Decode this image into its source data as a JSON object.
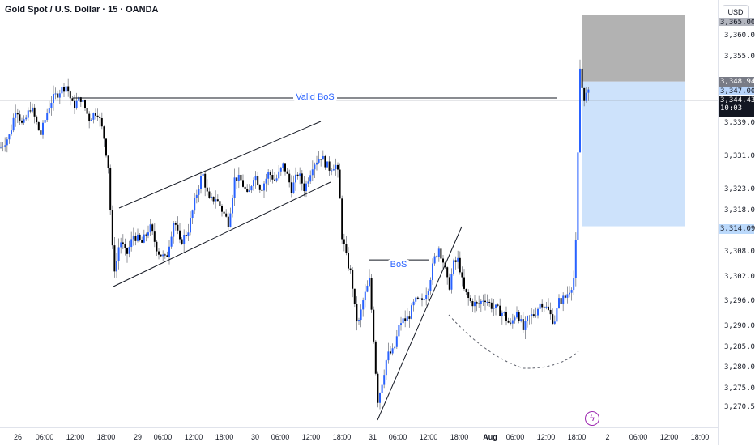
{
  "header": {
    "symbol_title": "Gold Spot / U.S. Dollar · 15 · OANDA",
    "currency": "USD"
  },
  "chart_data": {
    "type": "candlestick",
    "title": "Gold Spot / U.S. Dollar · 15 · OANDA",
    "y_ticks": [
      "3,360.000",
      "3,355.000",
      "3,339.000",
      "3,331.000",
      "3,323.000",
      "3,318.000",
      "3,308.000",
      "3,302.000",
      "3,296.000",
      "3,290.000",
      "3,285.000",
      "3,280.000",
      "3,275.000",
      "3,270.500"
    ],
    "y_tick_values": [
      3360,
      3355,
      3339,
      3331,
      3323,
      3318,
      3308,
      3302,
      3296,
      3290,
      3285,
      3280,
      3275,
      3270.5
    ],
    "x_ticks": [
      "26",
      "06:00",
      "12:00",
      "18:00",
      "29",
      "06:00",
      "12:00",
      "18:00",
      "30",
      "06:00",
      "12:00",
      "18:00",
      "31",
      "06:00",
      "12:00",
      "18:00",
      "Aug",
      "06:00",
      "12:00",
      "18:00",
      "2",
      "06:00",
      "12:00",
      "18:00"
    ],
    "price_tags": {
      "current_price": "3,344.430",
      "countdown": "10:03",
      "target": "3,348.944",
      "target_partial": "3,347.000",
      "stop": "3,314.090",
      "top_partial": "3,365.000"
    },
    "annotations": {
      "valid_bos": "Valid BoS",
      "bos": "BoS"
    },
    "close_path": [
      [
        0,
        3333
      ],
      [
        12,
        3336
      ],
      [
        20,
        3343
      ],
      [
        28,
        3338
      ],
      [
        38,
        3343
      ],
      [
        50,
        3336
      ],
      [
        62,
        3344
      ],
      [
        75,
        3347
      ],
      [
        82,
        3348
      ],
      [
        90,
        3343
      ],
      [
        100,
        3345
      ],
      [
        110,
        3340
      ],
      [
        120,
        3342
      ],
      [
        128,
        3336
      ],
      [
        134,
        3328
      ],
      [
        138,
        3310
      ],
      [
        142,
        3303
      ],
      [
        148,
        3311
      ],
      [
        156,
        3307
      ],
      [
        165,
        3312
      ],
      [
        175,
        3310
      ],
      [
        185,
        3314
      ],
      [
        195,
        3308
      ],
      [
        205,
        3306
      ],
      [
        215,
        3316
      ],
      [
        222,
        3310
      ],
      [
        232,
        3313
      ],
      [
        244,
        3323
      ],
      [
        250,
        3327
      ],
      [
        258,
        3320
      ],
      [
        266,
        3321
      ],
      [
        274,
        3318
      ],
      [
        282,
        3315
      ],
      [
        290,
        3326
      ],
      [
        298,
        3325
      ],
      [
        306,
        3321
      ],
      [
        314,
        3327
      ],
      [
        322,
        3323
      ],
      [
        332,
        3327
      ],
      [
        340,
        3325
      ],
      [
        350,
        3329
      ],
      [
        360,
        3323
      ],
      [
        368,
        3327
      ],
      [
        376,
        3323
      ],
      [
        386,
        3329
      ],
      [
        396,
        3331
      ],
      [
        406,
        3328
      ],
      [
        414,
        3329
      ],
      [
        418,
        3326
      ],
      [
        422,
        3312
      ],
      [
        428,
        3306
      ],
      [
        434,
        3302
      ],
      [
        438,
        3294
      ],
      [
        442,
        3290
      ],
      [
        448,
        3296
      ],
      [
        456,
        3301
      ],
      [
        462,
        3285
      ],
      [
        466,
        3272
      ],
      [
        470,
        3275
      ],
      [
        478,
        3283
      ],
      [
        486,
        3284
      ],
      [
        494,
        3291
      ],
      [
        504,
        3292
      ],
      [
        512,
        3296
      ],
      [
        520,
        3296
      ],
      [
        528,
        3299
      ],
      [
        536,
        3306
      ],
      [
        542,
        3309
      ],
      [
        548,
        3305
      ],
      [
        554,
        3299
      ],
      [
        560,
        3305
      ],
      [
        566,
        3306
      ],
      [
        572,
        3299
      ],
      [
        580,
        3296
      ],
      [
        590,
        3295
      ],
      [
        598,
        3297
      ],
      [
        606,
        3295
      ],
      [
        614,
        3294
      ],
      [
        622,
        3293
      ],
      [
        630,
        3290
      ],
      [
        638,
        3294
      ],
      [
        646,
        3289
      ],
      [
        652,
        3292
      ],
      [
        660,
        3293
      ],
      [
        668,
        3296
      ],
      [
        676,
        3294
      ],
      [
        684,
        3291
      ],
      [
        690,
        3296
      ],
      [
        698,
        3297
      ],
      [
        706,
        3300
      ],
      [
        710,
        3303
      ],
      [
        712,
        3320
      ],
      [
        716,
        3352
      ],
      [
        720,
        3345
      ],
      [
        726,
        3346
      ]
    ],
    "levels": {
      "valid_bos_price": 3345,
      "bos_price": 3306,
      "current": 3344.43,
      "target": 3348.944,
      "stop": 3314.09,
      "box_top": 3365
    },
    "grid": false
  }
}
